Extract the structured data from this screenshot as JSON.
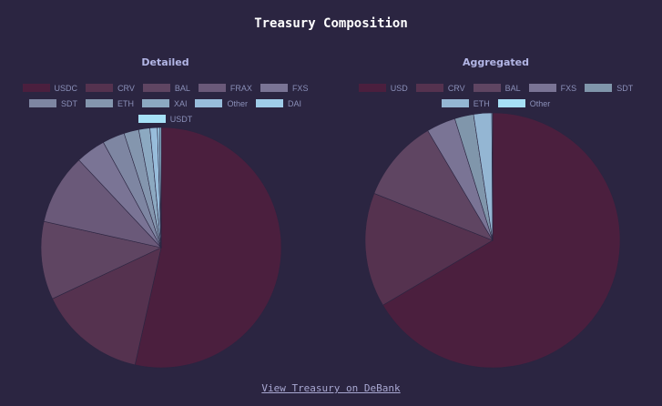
{
  "title": "Treasury Composition",
  "footer": {
    "link_label": "View Treasury on DeBank"
  },
  "chart_data": [
    {
      "type": "pie",
      "title": "Detailed",
      "legend_position": "top",
      "categories": [
        "USDC",
        "CRV",
        "BAL",
        "FRAX",
        "FXS",
        "SDT",
        "ETH",
        "XAI",
        "Other",
        "DAI",
        "USDT"
      ],
      "values": [
        53.5,
        14.5,
        10.5,
        9.5,
        4.0,
        3.0,
        2.0,
        1.5,
        1.0,
        0.3,
        0.2
      ],
      "colors": [
        "#4b1f3e",
        "#55324f",
        "#5f4562",
        "#6a5979",
        "#7a7495",
        "#7e86a2",
        "#8496ae",
        "#8ca9c1",
        "#98bddb",
        "#9fcde9",
        "#a6e0f6"
      ]
    },
    {
      "type": "pie",
      "title": "Aggregated",
      "legend_position": "top",
      "categories": [
        "USD",
        "CRV",
        "BAL",
        "FXS",
        "SDT",
        "ETH",
        "Other"
      ],
      "values": [
        66.5,
        14.5,
        10.5,
        3.7,
        2.4,
        2.3,
        0.1
      ],
      "colors": [
        "#4b1f3e",
        "#55324f",
        "#5f4562",
        "#7a7495",
        "#8096ab",
        "#94b6d3",
        "#a6e0f6"
      ]
    }
  ]
}
